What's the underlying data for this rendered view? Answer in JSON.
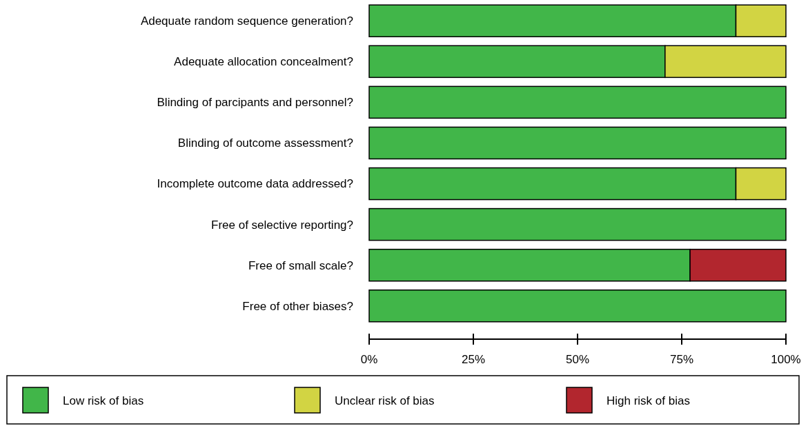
{
  "chart_data": {
    "type": "bar",
    "orientation": "horizontal",
    "stacked": true,
    "categories": [
      "Adequate random sequence generation?",
      "Adequate allocation concealment?",
      "Blinding of parcipants and personnel?",
      "Blinding of outcome assessment?",
      "Incomplete outcome data addressed?",
      "Free of selective reporting?",
      "Free of small scale?",
      "Free of other biases?"
    ],
    "series": [
      {
        "name": "Low risk of bias",
        "color": "#41b649",
        "values": [
          88,
          71,
          100,
          100,
          88,
          100,
          77,
          100
        ]
      },
      {
        "name": "Unclear risk of bias",
        "color": "#d2d443",
        "values": [
          12,
          29,
          null,
          null,
          12,
          null,
          null,
          null
        ]
      },
      {
        "name": "High risk of bias",
        "color": "#b2262e",
        "values": [
          null,
          null,
          null,
          null,
          null,
          null,
          23,
          null
        ]
      }
    ],
    "xlim": [
      0,
      100
    ],
    "xticks": [
      {
        "value": 0,
        "label": "0%"
      },
      {
        "value": 25,
        "label": "25%"
      },
      {
        "value": 50,
        "label": "50%"
      },
      {
        "value": 75,
        "label": "75%"
      },
      {
        "value": 100,
        "label": "100%"
      }
    ],
    "legend": "bottom",
    "grid": false
  }
}
